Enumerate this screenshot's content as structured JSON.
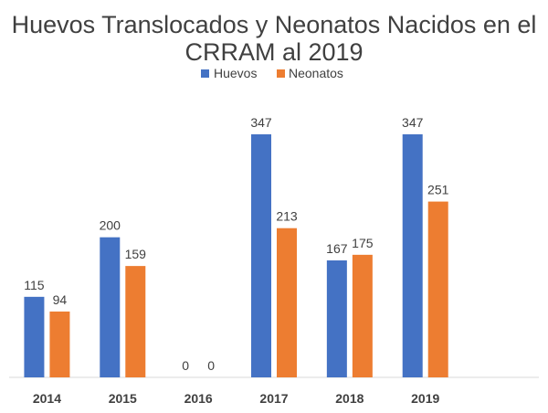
{
  "chart_data": {
    "type": "bar",
    "title_lines": [
      "Huevos Translocados y Neonatos Nacidos en el",
      "CRRAM al 2019"
    ],
    "categories": [
      "2014",
      "2015",
      "2016",
      "2017",
      "2018",
      "2019",
      ""
    ],
    "series": [
      {
        "name": "Huevos",
        "values": [
          115,
          200,
          0,
          347,
          167,
          347,
          null
        ],
        "labels": [
          "115",
          "200",
          "0",
          "347",
          "167",
          "347",
          ""
        ],
        "color": "#4472C4"
      },
      {
        "name": "Neonatos",
        "values": [
          94,
          159,
          0,
          213,
          175,
          251,
          null
        ],
        "labels": [
          "94",
          "159",
          "0",
          "213",
          "175",
          "251",
          ""
        ],
        "color": "#ED7D31"
      }
    ],
    "ylim": [
      0,
      347
    ],
    "grid": false,
    "legend_position": "top-center",
    "axis_color": "#D9D9D9",
    "text_color": "#404040"
  }
}
